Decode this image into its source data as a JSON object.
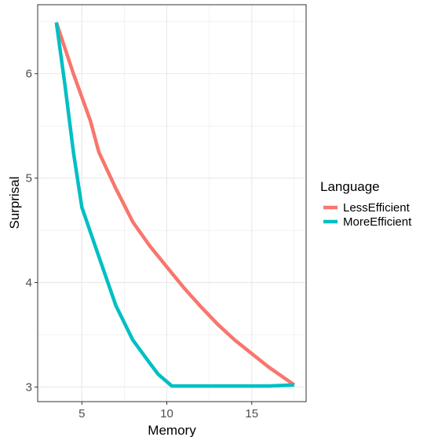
{
  "chart_data": {
    "type": "line",
    "xlabel": "Memory",
    "ylabel": "Surprisal",
    "xlim": [
      2.4,
      18.2
    ],
    "ylim": [
      2.86,
      6.66
    ],
    "xticks": [
      5,
      10,
      15
    ],
    "yticks": [
      3,
      4,
      5,
      6
    ],
    "grid": true,
    "legend": {
      "title": "Language",
      "position": "right"
    },
    "series": [
      {
        "name": "LessEfficient",
        "color": "#F8766D",
        "points": [
          [
            3.5,
            6.49
          ],
          [
            4.5,
            6.0
          ],
          [
            5.5,
            5.55
          ],
          [
            6.0,
            5.25
          ],
          [
            7.0,
            4.9
          ],
          [
            8.0,
            4.58
          ],
          [
            9.0,
            4.35
          ],
          [
            10.0,
            4.15
          ],
          [
            11.0,
            3.95
          ],
          [
            12.0,
            3.77
          ],
          [
            13.0,
            3.6
          ],
          [
            14.0,
            3.45
          ],
          [
            15.0,
            3.32
          ],
          [
            16.0,
            3.19
          ],
          [
            17.5,
            3.02
          ]
        ]
      },
      {
        "name": "MoreEfficient",
        "color": "#00BFC4",
        "points": [
          [
            3.5,
            6.49
          ],
          [
            4.0,
            5.9
          ],
          [
            4.5,
            5.25
          ],
          [
            5.0,
            4.72
          ],
          [
            6.0,
            4.25
          ],
          [
            7.0,
            3.78
          ],
          [
            8.0,
            3.45
          ],
          [
            8.9,
            3.25
          ],
          [
            9.5,
            3.12
          ],
          [
            10.3,
            3.01
          ],
          [
            12.0,
            3.01
          ],
          [
            14.0,
            3.01
          ],
          [
            16.0,
            3.01
          ],
          [
            17.5,
            3.02
          ]
        ]
      }
    ]
  }
}
